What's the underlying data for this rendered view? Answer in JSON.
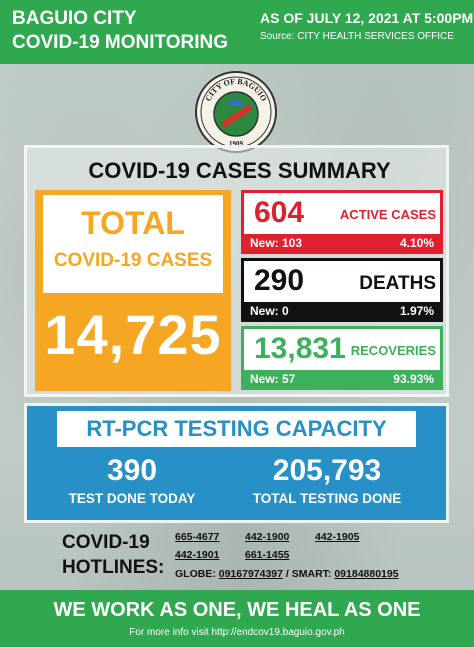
{
  "header": {
    "title_line1": "BAGUIO CITY",
    "title_line2": "COVID-19 MONITORING",
    "date": "AS OF JULY 12, 2021 AT 5:00PM",
    "source": "Source: CITY HEALTH SERVICES OFFICE"
  },
  "seal": {
    "text_top": "CITY OF BAGUIO",
    "year": "1909"
  },
  "summary": {
    "title": "COVID-19 CASES SUMMARY",
    "total": {
      "label_line1": "TOTAL",
      "label_line2": "COVID-19 CASES",
      "value": "14,725"
    },
    "active": {
      "value": "604",
      "label": "ACTIVE CASES",
      "new": "New: 103",
      "percent": "4.10%"
    },
    "deaths": {
      "value": "290",
      "label": "DEATHS",
      "new": "New: 0",
      "percent": "1.97%"
    },
    "recoveries": {
      "value": "13,831",
      "label": "RECOVERIES",
      "new": "New: 57",
      "percent": "93.93%"
    }
  },
  "testing": {
    "title": "RT-PCR TESTING CAPACITY",
    "today_value": "390",
    "today_label": "TEST DONE TODAY",
    "total_value": "205,793",
    "total_label": "TOTAL TESTING DONE"
  },
  "hotlines": {
    "title_line1": "COVID-19",
    "title_line2": "HOTLINES:",
    "numbers": [
      "665-4677",
      "442-1900",
      "442-1905",
      "442-1901",
      "661-1455"
    ],
    "globe_label": "GLOBE: ",
    "globe": "09167974397",
    "smart_label": " / SMART: ",
    "smart": "09184880195"
  },
  "footer": {
    "slogan": "WE WORK AS ONE, WE HEAL AS ONE",
    "info": "For more info visit http://endcov19.baguio.gov.ph"
  },
  "colors": {
    "green": "#2fa84f",
    "orange": "#f5a623",
    "red": "#e0202f",
    "black": "#111111",
    "recovery_green": "#3cb05a",
    "blue": "#2790c6"
  }
}
